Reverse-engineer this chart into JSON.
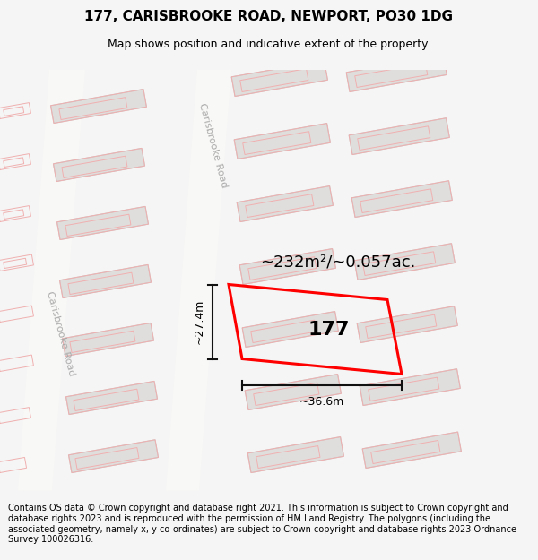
{
  "title_line1": "177, CARISBROOKE ROAD, NEWPORT, PO30 1DG",
  "title_line2": "Map shows position and indicative extent of the property.",
  "footer_text": "Contains OS data © Crown copyright and database right 2021. This information is subject to Crown copyright and database rights 2023 and is reproduced with the permission of HM Land Registry. The polygons (including the associated geometry, namely x, y co-ordinates) are subject to Crown copyright and database rights 2023 Ordnance Survey 100026316.",
  "area_label": "~232m²/~0.057ac.",
  "property_number": "177",
  "dim_width": "~36.6m",
  "dim_height": "~27.4m",
  "road_label_right": "Carisbrooke Road",
  "road_label_left": "Carisbrooke Road",
  "bg_color": "#f5f5f5",
  "map_bg": "#f5f4f2",
  "block_color": "#e0dedd",
  "block_edge_color": "#c8c8c8",
  "red_poly_color": "#ff0000",
  "pink_outline_color": "#f0b0b0",
  "dim_line_color": "#111111",
  "road_label_color": "#aaaaaa",
  "title_fontsize": 11,
  "subtitle_fontsize": 9,
  "footer_fontsize": 7.0
}
